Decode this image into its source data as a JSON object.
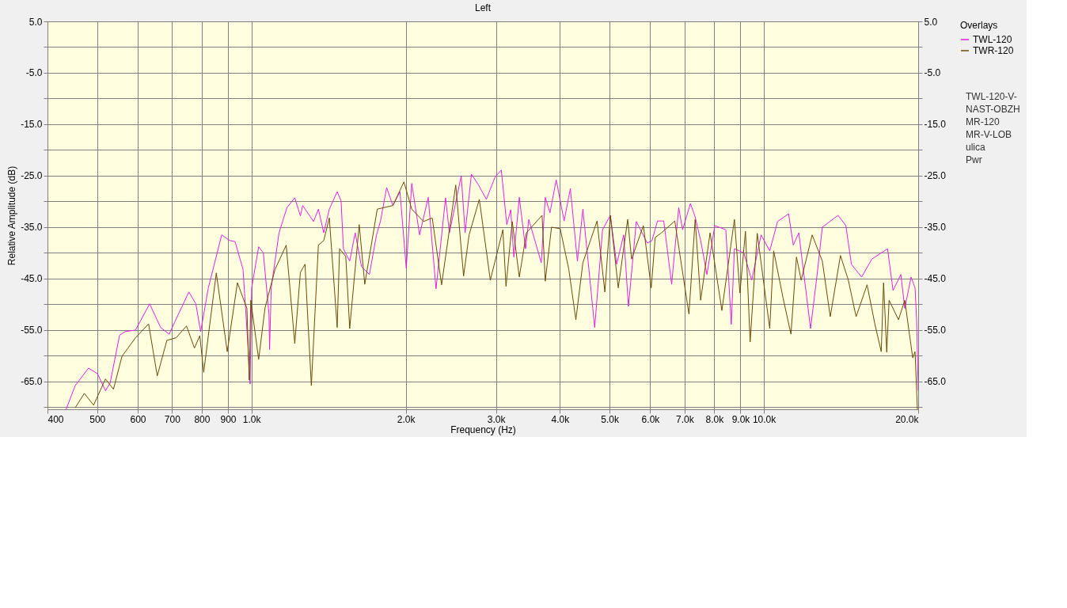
{
  "chart_data": {
    "type": "line",
    "title": "Left",
    "xlabel": "Frequency (Hz)",
    "ylabel": "Relative Amplitude (dB)",
    "legend_title": "Overlays",
    "log": "x",
    "grid": true,
    "legend": "top right",
    "line_style": "solid",
    "marker": "none",
    "xlim": [
      400,
      20000
    ],
    "xticks": [
      400,
      500,
      600,
      700,
      800,
      900,
      {
        "value": 1000,
        "label": "1.0k"
      },
      {
        "value": 2000,
        "label": "2.0k"
      },
      {
        "value": 3000,
        "label": "3.0k"
      },
      {
        "value": 4000,
        "label": "4.0k"
      },
      {
        "value": 5000,
        "label": "5.0k"
      },
      {
        "value": 6000,
        "label": "6.0k"
      },
      {
        "value": 7000,
        "label": "7.0k"
      },
      {
        "value": 8000,
        "label": "8.0k"
      },
      {
        "value": 9000,
        "label": "9.0k"
      },
      {
        "value": 10000,
        "label": "10.0k"
      },
      {
        "value": 20000,
        "label": "20.0k"
      }
    ],
    "ylim": [
      -70.4,
      5
    ],
    "yticks": [
      {
        "value": 5,
        "label": "5.0"
      },
      {
        "value": 0,
        "label": null
      },
      {
        "value": -5,
        "label": "-5.0"
      },
      {
        "value": -10,
        "label": null
      },
      {
        "value": -15,
        "label": "-15.0"
      },
      {
        "value": -20,
        "label": null
      },
      {
        "value": -25,
        "label": "-25.0"
      },
      {
        "value": -30,
        "label": null
      },
      {
        "value": -35,
        "label": "-35.0"
      },
      {
        "value": -40,
        "label": null
      },
      {
        "value": -45,
        "label": "-45.0"
      },
      {
        "value": -50,
        "label": null
      },
      {
        "value": -55,
        "label": "-55.0"
      },
      {
        "value": -60,
        "label": null
      },
      {
        "value": -65,
        "label": "-65.0"
      },
      {
        "value": -70,
        "label": null
      }
    ],
    "y2lim": [
      -70.4,
      5
    ],
    "y2ticks": [
      {
        "value": 5,
        "label": "5.0"
      },
      {
        "value": 0,
        "label": null
      },
      {
        "value": -5,
        "label": "-5.0"
      },
      {
        "value": -10,
        "label": null
      },
      {
        "value": -15,
        "label": "-15.0"
      },
      {
        "value": -20,
        "label": null
      },
      {
        "value": -25,
        "label": "-25.0"
      },
      {
        "value": -30,
        "label": null
      },
      {
        "value": -35,
        "label": "-35.0"
      },
      {
        "value": -40,
        "label": null
      },
      {
        "value": -45,
        "label": "-45.0"
      },
      {
        "value": -50,
        "label": null
      },
      {
        "value": -55,
        "label": "-55.0"
      },
      {
        "value": -60,
        "label": null
      },
      {
        "value": -65,
        "label": "-65.0"
      },
      {
        "value": -70,
        "label": null
      }
    ],
    "annotations": [
      "TWL-120-V-",
      "NAST-OBZH",
      "MR-120",
      "MR-V-LOB",
      "ulica",
      "Pwr"
    ],
    "series": [
      {
        "name": "TWL-120",
        "color": "#e020e0",
        "x": [
          435,
          453,
          481,
          501,
          519,
          530,
          553,
          567,
          594,
          633,
          665,
          691,
          708,
          755,
          779,
          796,
          824,
          875,
          907,
          929,
          963,
          983,
          994,
          1001,
          1033,
          1055,
          1082,
          1085,
          1093,
          1132,
          1173,
          1215,
          1246,
          1259,
          1322,
          1351,
          1384,
          1419,
          1470,
          1496,
          1512,
          1555,
          1594,
          1640,
          1699,
          1754,
          1785,
          1836,
          1888,
          1949,
          2005,
          2055,
          2129,
          2213,
          2292,
          2392,
          2434,
          2567,
          2612,
          2687,
          2774,
          2873,
          2987,
          3073,
          3150,
          3206,
          3251,
          3332,
          3427,
          3477,
          3678,
          3744,
          3824,
          3933,
          4075,
          4191,
          4326,
          4434,
          4675,
          4843,
          5016,
          5160,
          5326,
          5441,
          5636,
          5921,
          6048,
          6199,
          6376,
          6606,
          6819,
          6940,
          7188,
          7342,
          7526,
          7742,
          8019,
          8427,
          8636,
          8759,
          9138,
          9467,
          9874,
          10265,
          10634,
          11173,
          11411,
          11696,
          12331,
          12684,
          13001,
          13952,
          14452,
          14815,
          15511,
          16240,
          17428,
          17864,
          18501,
          18831,
          19373,
          19720,
          19860,
          20000
        ],
        "values": [
          -70.4,
          -65.8,
          -62.4,
          -63.5,
          -66.8,
          -65.3,
          -56,
          -55.3,
          -55,
          -49.9,
          -54.5,
          -55.8,
          -53.5,
          -47.6,
          -49.9,
          -55.3,
          -46.8,
          -36.5,
          -37.6,
          -37.8,
          -43.2,
          -57,
          -65.5,
          -46.8,
          -38.8,
          -40,
          -51.9,
          -58.8,
          -46.8,
          -36.1,
          -31.2,
          -29.3,
          -32.8,
          -30.8,
          -33.9,
          -31.5,
          -36.1,
          -31.5,
          -28.1,
          -29.9,
          -39.2,
          -41.6,
          -36.1,
          -42.7,
          -44.2,
          -36.5,
          -33.9,
          -27.3,
          -30.8,
          -28.1,
          -43,
          -26.5,
          -36.5,
          -29.2,
          -47,
          -29.3,
          -36.1,
          -25,
          -36.1,
          -24.7,
          -26.8,
          -29.6,
          -25.3,
          -23.9,
          -34.5,
          -31.6,
          -40.8,
          -29.2,
          -39.2,
          -33.5,
          -41.9,
          -29.2,
          -32.2,
          -25.8,
          -33.8,
          -27.5,
          -41.6,
          -31.5,
          -54.5,
          -35.5,
          -32.7,
          -42.2,
          -36.5,
          -50.4,
          -33.9,
          -38.1,
          -37.6,
          -33.8,
          -33.8,
          -46.1,
          -31.2,
          -35.5,
          -30.4,
          -33,
          -37.6,
          -44.2,
          -34.7,
          -35.5,
          -53.9,
          -39.2,
          -40,
          -45.3,
          -36.5,
          -39.6,
          -33.9,
          -32.4,
          -38.5,
          -36.1,
          -54.7,
          -44.7,
          -35,
          -32.7,
          -34.7,
          -42.2,
          -44.7,
          -41.2,
          -39.2,
          -47.3,
          -44.2,
          -50.8,
          -44.7,
          -46.8,
          -53,
          -66.8
        ]
      },
      {
        "name": "TWR-120",
        "color": "#6b4a0a",
        "x": [
          453,
          472,
          492,
          519,
          538,
          559,
          594,
          630,
          655,
          684,
          713,
          747,
          774,
          793,
          807,
          854,
          897,
          939,
          980,
          990,
          997,
          1033,
          1063,
          1112,
          1169,
          1215,
          1246,
          1272,
          1309,
          1351,
          1384,
          1419,
          1470,
          1486,
          1528,
          1555,
          1623,
          1664,
          1760,
          1888,
          1984,
          2055,
          2167,
          2253,
          2350,
          2504,
          2594,
          2659,
          2784,
          2925,
          3095,
          3139,
          3228,
          3332,
          3440,
          3691,
          3744,
          3851,
          4004,
          4162,
          4296,
          4434,
          4725,
          4894,
          5016,
          5197,
          5422,
          5518,
          5818,
          6027,
          6136,
          6310,
          6700,
          7140,
          7342,
          7526,
          7852,
          8279,
          8759,
          8978,
          9204,
          9400,
          9704,
          10265,
          10449,
          10900,
          11292,
          11575,
          11822,
          12420,
          13001,
          13472,
          14104,
          14612,
          15133,
          15896,
          16468,
          16940,
          17120,
          17365,
          17549,
          18306,
          18831,
          19513,
          19720,
          19930
        ],
        "values": [
          -70.1,
          -67.3,
          -69.6,
          -64.5,
          -66.5,
          -60.1,
          -56.5,
          -53.8,
          -63.9,
          -57,
          -56.5,
          -54.2,
          -58.5,
          -56.1,
          -63.2,
          -43.9,
          -59.2,
          -45.8,
          -50.8,
          -64.7,
          -49.2,
          -60.7,
          -50.7,
          -43.2,
          -38.5,
          -57.6,
          -43.8,
          -42.2,
          -65.8,
          -38.5,
          -37.6,
          -33.2,
          -54.5,
          -39.2,
          -40.7,
          -54.7,
          -34.5,
          -46.1,
          -31.5,
          -30.8,
          -26.2,
          -31.5,
          -33.9,
          -33.2,
          -46.2,
          -26.8,
          -44.5,
          -36.5,
          -29.6,
          -45.3,
          -35.5,
          -46.5,
          -33.9,
          -44.7,
          -36.1,
          -32.7,
          -45.5,
          -35,
          -35.3,
          -43.2,
          -53,
          -41.9,
          -33.8,
          -47.6,
          -32.7,
          -46.8,
          -33.5,
          -41.2,
          -34.7,
          -46.8,
          -37,
          -36.1,
          -33.8,
          -51.9,
          -33.5,
          -49.2,
          -36.1,
          -51.2,
          -33.5,
          -47.8,
          -35.8,
          -57.3,
          -36.2,
          -54.7,
          -39.6,
          -48.8,
          -55.8,
          -40.8,
          -45.3,
          -36.5,
          -41.6,
          -52.4,
          -40.5,
          -45.3,
          -52.4,
          -46.2,
          -53.9,
          -59.2,
          -45.8,
          -59.3,
          -49.2,
          -53,
          -49.2,
          -60.4,
          -59.2,
          -70.4
        ]
      }
    ]
  }
}
